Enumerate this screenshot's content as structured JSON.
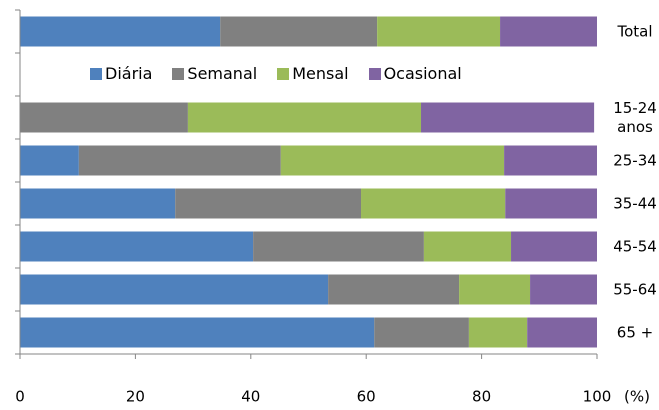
{
  "chart_data": {
    "type": "stacked_barh",
    "categories": [
      "Total",
      null,
      "15-24 anos",
      "25-34",
      "35-44",
      "45-54",
      "55-64",
      "65 +"
    ],
    "series": [
      {
        "name": "Diária",
        "color": "#4f81bd",
        "values": [
          34.7,
          null,
          0,
          10.2,
          26.9,
          40.4,
          53.4,
          61.4
        ]
      },
      {
        "name": "Semanal",
        "color": "#808080",
        "values": [
          27.2,
          null,
          29.1,
          35.0,
          32.2,
          29.6,
          22.7,
          16.4
        ]
      },
      {
        "name": "Mensal",
        "color": "#9bbb59",
        "values": [
          21.3,
          null,
          40.4,
          38.7,
          25.0,
          15.1,
          12.3,
          10.1
        ]
      },
      {
        "name": "Ocasional",
        "color": "#8064a2",
        "values": [
          16.8,
          null,
          30.0,
          16.1,
          15.9,
          14.9,
          11.6,
          12.1
        ]
      }
    ],
    "xlim": [
      0,
      100
    ],
    "xticks": [
      0,
      20,
      40,
      60,
      80,
      100
    ],
    "xlabel": "(%)",
    "legend": "top"
  }
}
